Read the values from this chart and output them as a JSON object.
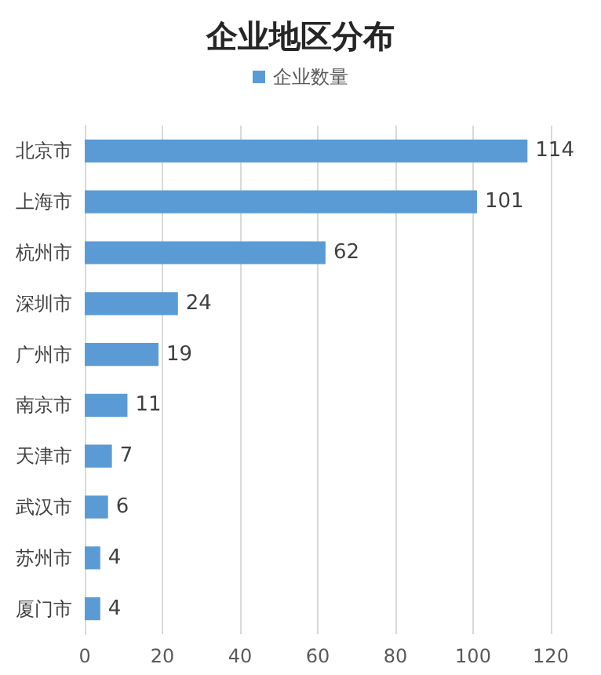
{
  "chart_data": {
    "type": "bar",
    "orientation": "horizontal",
    "title": "企业地区分布",
    "categories": [
      "北京市",
      "上海市",
      "杭州市",
      "深圳市",
      "广州市",
      "南京市",
      "天津市",
      "武汉市",
      "苏州市",
      "厦门市"
    ],
    "series": [
      {
        "name": "企业数量",
        "color": "#5b9bd5",
        "values": [
          114,
          101,
          62,
          24,
          19,
          11,
          7,
          6,
          4,
          4
        ]
      }
    ],
    "xlim": [
      0,
      120
    ],
    "xticks": [
      0,
      20,
      40,
      60,
      80,
      100,
      120
    ],
    "grid": "x",
    "legend": "top",
    "data_labels": true
  }
}
